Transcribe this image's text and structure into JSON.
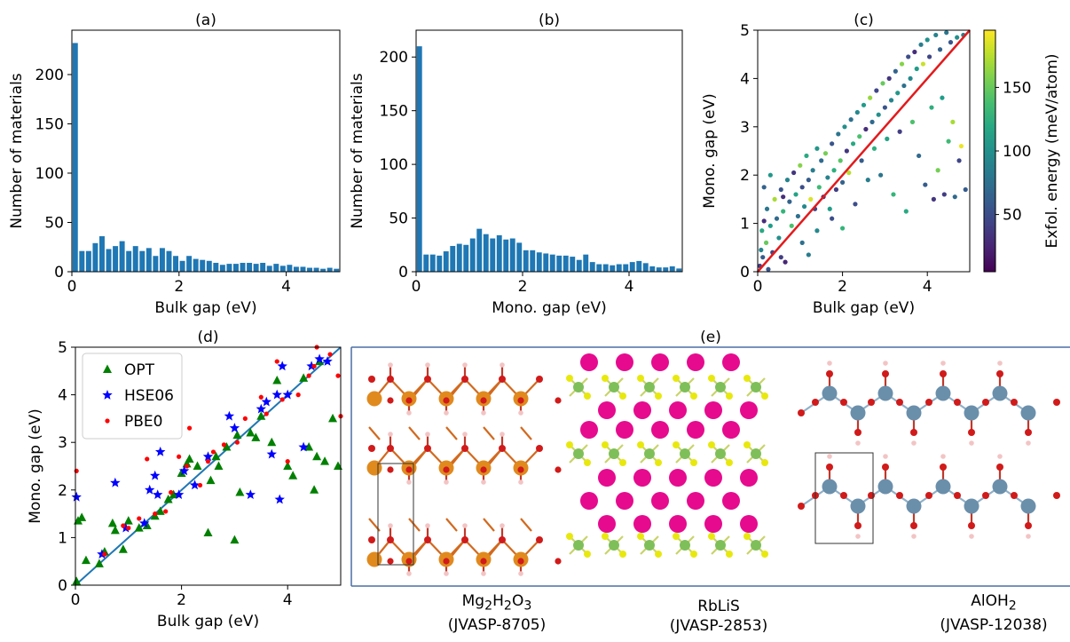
{
  "chart_data": [
    {
      "panel": "(a)",
      "type": "bar",
      "title": "(a)",
      "xlabel": "Bulk gap (eV)",
      "ylabel": "Number of materials",
      "xlim": [
        0,
        5
      ],
      "ylim": [
        0,
        245
      ],
      "xticks": [
        0,
        2,
        4
      ],
      "yticks": [
        0,
        50,
        100,
        150,
        200
      ],
      "bin_width": 0.125,
      "values": [
        232,
        21,
        21,
        29,
        36,
        23,
        26,
        31,
        21,
        26,
        21,
        24,
        16,
        24,
        21,
        16,
        11,
        16,
        13,
        12,
        11,
        9,
        7,
        8,
        8,
        9,
        9,
        8,
        9,
        6,
        8,
        6,
        7,
        5,
        5,
        4,
        4,
        3,
        4,
        3
      ],
      "color": "#1f77b4"
    },
    {
      "panel": "(b)",
      "type": "bar",
      "title": "(b)",
      "xlabel": "Mono. gap (eV)",
      "ylabel": "Number of materials",
      "xlim": [
        0,
        5
      ],
      "ylim": [
        0,
        225
      ],
      "xticks": [
        0,
        2,
        4
      ],
      "yticks": [
        0,
        50,
        100,
        150,
        200
      ],
      "bin_width": 0.125,
      "values": [
        210,
        16,
        16,
        15,
        19,
        24,
        26,
        25,
        31,
        40,
        35,
        31,
        34,
        30,
        31,
        27,
        20,
        20,
        18,
        17,
        16,
        15,
        15,
        14,
        11,
        16,
        9,
        7,
        7,
        6,
        7,
        7,
        9,
        10,
        8,
        5,
        4,
        4,
        5,
        3
      ],
      "color": "#1f77b4"
    },
    {
      "panel": "(c)",
      "type": "scatter",
      "title": "(c)",
      "xlabel": "Bulk gap (eV)",
      "ylabel": "Mono. gap (eV)",
      "xlim": [
        0,
        5
      ],
      "ylim": [
        0,
        5
      ],
      "xticks": [
        0,
        2,
        4
      ],
      "yticks": [
        0,
        1,
        2,
        3,
        4,
        5
      ],
      "colorbar": {
        "label": "Exfol. energy (meV/atom)",
        "ticks": [
          50,
          100,
          150
        ],
        "range": [
          5,
          195
        ],
        "colormap": "viridis"
      },
      "reference_line": {
        "x": [
          0,
          5
        ],
        "y": [
          0,
          5
        ],
        "color": "#e31a1c"
      },
      "points": [
        [
          0.05,
          0.12,
          40
        ],
        [
          0.08,
          0.45,
          90
        ],
        [
          0.1,
          0.85,
          120
        ],
        [
          0.12,
          0.3,
          60
        ],
        [
          0.15,
          1.05,
          30
        ],
        [
          0.2,
          0.6,
          150
        ],
        [
          0.22,
          1.3,
          80
        ],
        [
          0.3,
          0.95,
          110
        ],
        [
          0.35,
          0.4,
          45
        ],
        [
          0.4,
          1.5,
          170
        ],
        [
          0.45,
          1.1,
          70
        ],
        [
          0.5,
          0.7,
          100
        ],
        [
          0.55,
          1.7,
          55
        ],
        [
          0.6,
          1.25,
          130
        ],
        [
          0.65,
          0.2,
          25
        ],
        [
          0.7,
          1.9,
          90
        ],
        [
          0.75,
          1.45,
          65
        ],
        [
          0.8,
          0.95,
          140
        ],
        [
          0.85,
          2.05,
          35
        ],
        [
          0.9,
          1.6,
          115
        ],
        [
          0.95,
          1.15,
          75
        ],
        [
          1.0,
          2.2,
          160
        ],
        [
          1.05,
          1.75,
          50
        ],
        [
          1.1,
          1.35,
          95
        ],
        [
          1.15,
          2.4,
          120
        ],
        [
          1.2,
          1.9,
          60
        ],
        [
          1.25,
          1.5,
          185
        ],
        [
          1.3,
          2.1,
          85
        ],
        [
          1.35,
          1.3,
          45
        ],
        [
          1.4,
          2.55,
          105
        ],
        [
          1.45,
          1.75,
          135
        ],
        [
          1.5,
          2.3,
          70
        ],
        [
          1.55,
          1.55,
          30
        ],
        [
          1.6,
          2.45,
          155
        ],
        [
          1.65,
          1.95,
          90
        ],
        [
          1.7,
          1.3,
          110
        ],
        [
          1.75,
          2.65,
          55
        ],
        [
          1.8,
          2.1,
          125
        ],
        [
          1.85,
          1.7,
          40
        ],
        [
          1.9,
          2.85,
          80
        ],
        [
          1.95,
          2.3,
          145
        ],
        [
          2.0,
          1.85,
          65
        ],
        [
          2.05,
          3.0,
          100
        ],
        [
          2.1,
          2.5,
          35
        ],
        [
          2.15,
          2.05,
          175
        ],
        [
          2.2,
          3.15,
          75
        ],
        [
          2.25,
          2.65,
          120
        ],
        [
          2.3,
          1.4,
          50
        ],
        [
          2.35,
          3.3,
          95
        ],
        [
          2.4,
          2.8,
          140
        ],
        [
          2.45,
          2.3,
          60
        ],
        [
          2.5,
          3.45,
          110
        ],
        [
          2.55,
          2.95,
          30
        ],
        [
          2.6,
          1.9,
          85
        ],
        [
          2.65,
          3.6,
          165
        ],
        [
          2.7,
          3.1,
          70
        ],
        [
          2.75,
          2.55,
          125
        ],
        [
          2.8,
          3.75,
          45
        ],
        [
          2.85,
          3.25,
          100
        ],
        [
          2.9,
          2.0,
          80
        ],
        [
          2.95,
          3.9,
          150
        ],
        [
          3.0,
          3.4,
          55
        ],
        [
          3.05,
          2.75,
          115
        ],
        [
          3.1,
          4.0,
          35
        ],
        [
          3.15,
          3.55,
          90
        ],
        [
          3.2,
          1.6,
          130
        ],
        [
          3.25,
          4.15,
          65
        ],
        [
          3.3,
          3.7,
          105
        ],
        [
          3.35,
          2.9,
          40
        ],
        [
          3.4,
          4.3,
          160
        ],
        [
          3.45,
          3.85,
          75
        ],
        [
          3.5,
          1.25,
          120
        ],
        [
          3.55,
          4.45,
          50
        ],
        [
          3.6,
          4.0,
          95
        ],
        [
          3.65,
          3.1,
          140
        ],
        [
          3.7,
          4.55,
          30
        ],
        [
          3.75,
          4.2,
          110
        ],
        [
          3.8,
          2.4,
          70
        ],
        [
          3.85,
          4.7,
          85
        ],
        [
          3.9,
          4.3,
          180
        ],
        [
          3.95,
          1.8,
          60
        ],
        [
          4.0,
          4.8,
          100
        ],
        [
          4.05,
          4.45,
          45
        ],
        [
          4.1,
          3.4,
          125
        ],
        [
          4.15,
          1.5,
          35
        ],
        [
          4.2,
          4.9,
          90
        ],
        [
          4.25,
          2.1,
          155
        ],
        [
          4.3,
          4.6,
          65
        ],
        [
          4.35,
          3.6,
          110
        ],
        [
          4.4,
          1.6,
          40
        ],
        [
          4.45,
          4.95,
          80
        ],
        [
          4.5,
          2.7,
          135
        ],
        [
          4.55,
          4.75,
          55
        ],
        [
          4.6,
          3.1,
          170
        ],
        [
          4.65,
          1.55,
          70
        ],
        [
          4.7,
          4.85,
          100
        ],
        [
          4.75,
          2.3,
          45
        ],
        [
          4.8,
          2.6,
          190
        ],
        [
          4.85,
          4.9,
          85
        ],
        [
          4.9,
          1.7,
          60
        ],
        [
          0.25,
          0.05,
          55
        ],
        [
          0.55,
          0.3,
          40
        ],
        [
          1.05,
          0.6,
          75
        ],
        [
          1.4,
          0.85,
          95
        ],
        [
          1.75,
          1.1,
          50
        ],
        [
          2.0,
          0.9,
          130
        ],
        [
          0.15,
          1.75,
          65
        ],
        [
          0.3,
          2.0,
          105
        ],
        [
          0.6,
          1.55,
          30
        ],
        [
          1.2,
          0.35,
          85
        ]
      ]
    },
    {
      "panel": "(d)",
      "type": "scatter",
      "title": "(d)",
      "xlabel": "Bulk gap (eV)",
      "ylabel": "Mono. gap (eV)",
      "xlim": [
        0,
        5
      ],
      "ylim": [
        0,
        5
      ],
      "xticks": [
        0,
        2,
        4
      ],
      "yticks": [
        0,
        1,
        2,
        3,
        4,
        5
      ],
      "legend_position": "top-left",
      "reference_line": {
        "x": [
          0,
          5
        ],
        "y": [
          0,
          5
        ],
        "color": "#1f77b4"
      },
      "series": [
        {
          "name": "OPT",
          "marker": "triangle",
          "color": "#008000",
          "points": [
            [
              0.02,
              0.08
            ],
            [
              0.05,
              1.35
            ],
            [
              0.12,
              1.42
            ],
            [
              0.2,
              0.52
            ],
            [
              0.45,
              0.45
            ],
            [
              0.55,
              0.7
            ],
            [
              0.7,
              1.3
            ],
            [
              0.75,
              1.15
            ],
            [
              0.9,
              0.75
            ],
            [
              1.0,
              1.35
            ],
            [
              1.2,
              1.2
            ],
            [
              1.35,
              1.25
            ],
            [
              1.5,
              1.45
            ],
            [
              1.6,
              1.55
            ],
            [
              1.75,
              1.8
            ],
            [
              1.85,
              1.9
            ],
            [
              2.0,
              2.35
            ],
            [
              2.1,
              2.55
            ],
            [
              2.15,
              2.65
            ],
            [
              2.3,
              2.5
            ],
            [
              2.5,
              1.1
            ],
            [
              2.55,
              2.2
            ],
            [
              2.65,
              2.7
            ],
            [
              2.7,
              2.5
            ],
            [
              2.85,
              2.9
            ],
            [
              3.0,
              0.95
            ],
            [
              3.05,
              3.15
            ],
            [
              3.1,
              1.95
            ],
            [
              3.3,
              3.2
            ],
            [
              3.4,
              3.1
            ],
            [
              3.5,
              3.55
            ],
            [
              3.7,
              3.0
            ],
            [
              3.8,
              4.3
            ],
            [
              4.0,
              2.5
            ],
            [
              4.1,
              2.3
            ],
            [
              4.3,
              4.35
            ],
            [
              4.4,
              2.9
            ],
            [
              4.5,
              2.0
            ],
            [
              4.55,
              2.7
            ],
            [
              4.6,
              4.7
            ],
            [
              4.7,
              2.6
            ],
            [
              4.85,
              3.5
            ],
            [
              4.95,
              2.5
            ]
          ]
        },
        {
          "name": "HSE06",
          "marker": "star",
          "color": "#0000ff",
          "points": [
            [
              0.02,
              1.85
            ],
            [
              0.5,
              0.65
            ],
            [
              0.75,
              2.15
            ],
            [
              0.95,
              1.2
            ],
            [
              1.3,
              1.3
            ],
            [
              1.4,
              2.0
            ],
            [
              1.5,
              2.3
            ],
            [
              1.55,
              1.9
            ],
            [
              1.6,
              2.8
            ],
            [
              1.95,
              1.9
            ],
            [
              2.05,
              2.4
            ],
            [
              2.25,
              2.1
            ],
            [
              2.5,
              2.7
            ],
            [
              2.9,
              3.55
            ],
            [
              3.0,
              3.3
            ],
            [
              3.3,
              1.9
            ],
            [
              3.5,
              3.7
            ],
            [
              3.6,
              3.85
            ],
            [
              3.7,
              2.75
            ],
            [
              3.8,
              4.0
            ],
            [
              3.85,
              1.8
            ],
            [
              3.9,
              4.6
            ],
            [
              4.0,
              4.0
            ],
            [
              4.3,
              2.9
            ],
            [
              4.45,
              4.6
            ],
            [
              4.6,
              4.75
            ],
            [
              4.75,
              4.7
            ]
          ]
        },
        {
          "name": "PBE0",
          "marker": "circle",
          "color": "#ff0000",
          "points": [
            [
              0.02,
              2.4
            ],
            [
              0.55,
              0.65
            ],
            [
              0.9,
              1.25
            ],
            [
              1.0,
              1.2
            ],
            [
              1.2,
              1.4
            ],
            [
              1.35,
              2.65
            ],
            [
              1.5,
              1.5
            ],
            [
              1.7,
              1.55
            ],
            [
              1.8,
              1.95
            ],
            [
              1.95,
              2.7
            ],
            [
              2.1,
              2.5
            ],
            [
              2.15,
              3.3
            ],
            [
              2.35,
              2.1
            ],
            [
              2.5,
              2.6
            ],
            [
              2.6,
              2.8
            ],
            [
              2.8,
              2.95
            ],
            [
              3.05,
              3.0
            ],
            [
              3.2,
              3.5
            ],
            [
              3.5,
              3.95
            ],
            [
              3.6,
              3.6
            ],
            [
              3.8,
              4.7
            ],
            [
              3.9,
              3.9
            ],
            [
              4.0,
              2.6
            ],
            [
              4.2,
              4.0
            ],
            [
              4.4,
              4.4
            ],
            [
              4.5,
              4.6
            ],
            [
              4.55,
              5.0
            ],
            [
              4.8,
              4.85
            ],
            [
              4.95,
              4.4
            ],
            [
              5.0,
              3.55
            ]
          ]
        }
      ]
    }
  ],
  "panel_e": {
    "title": "(e)",
    "structures": [
      {
        "name_main": "Mg",
        "sub1": "2",
        "mid1": "H",
        "sub2": "2",
        "mid2": "O",
        "sub3": "3",
        "id": "(JVASP-8705)"
      },
      {
        "name_plain": "RbLiS",
        "id": "(JVASP-2853)"
      },
      {
        "name_main": "AlOH",
        "sub1": "2",
        "id": "(JVASP-12038)"
      }
    ]
  }
}
